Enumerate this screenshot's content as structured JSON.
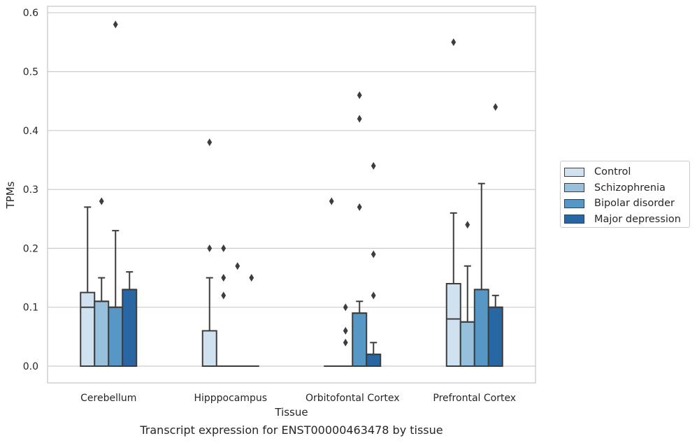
{
  "chart_data": {
    "type": "box",
    "caption": "Transcript expression for ENST00000463478 by tissue",
    "xlabel": "Tissue",
    "ylabel": "TPMs",
    "ylim": [
      -0.03,
      0.61
    ],
    "yticks": [
      0.0,
      0.1,
      0.2,
      0.3,
      0.4,
      0.5,
      0.6
    ],
    "ytick_labels": [
      "0.0",
      "0.1",
      "0.2",
      "0.3",
      "0.4",
      "0.5",
      "0.6"
    ],
    "grid": "horizontal",
    "legend_position": "right",
    "categories": [
      "Cerebellum",
      "Hipppocampus",
      "Orbitofontal Cortex",
      "Prefrontal Cortex"
    ],
    "series": [
      {
        "name": "Control",
        "color": "#d0e1f0",
        "boxes": [
          {
            "q1": 0.0,
            "median": 0.1,
            "q3": 0.125,
            "whislo": 0.0,
            "whishi": 0.27,
            "fliers": []
          },
          {
            "q1": 0.0,
            "median": 0.0,
            "q3": 0.06,
            "whislo": 0.0,
            "whishi": 0.15,
            "fliers": [
              0.38,
              0.2
            ]
          },
          {
            "q1": 0.0,
            "median": 0.0,
            "q3": 0.0,
            "whislo": 0.0,
            "whishi": 0.0,
            "fliers": [
              0.28
            ]
          },
          {
            "q1": 0.0,
            "median": 0.08,
            "q3": 0.14,
            "whislo": 0.0,
            "whishi": 0.26,
            "fliers": [
              0.55
            ]
          }
        ]
      },
      {
        "name": "Schizophrenia",
        "color": "#96c0dc",
        "boxes": [
          {
            "q1": 0.0,
            "median": 0.11,
            "q3": 0.11,
            "whislo": 0.0,
            "whishi": 0.15,
            "fliers": [
              0.28
            ]
          },
          {
            "q1": 0.0,
            "median": 0.0,
            "q3": 0.0,
            "whislo": 0.0,
            "whishi": 0.0,
            "fliers": [
              0.2,
              0.15,
              0.12
            ]
          },
          {
            "q1": 0.0,
            "median": 0.0,
            "q3": 0.0,
            "whislo": 0.0,
            "whishi": 0.0,
            "fliers": [
              0.1,
              0.06,
              0.04
            ]
          },
          {
            "q1": 0.0,
            "median": 0.075,
            "q3": 0.075,
            "whislo": 0.0,
            "whishi": 0.17,
            "fliers": [
              0.24
            ]
          }
        ]
      },
      {
        "name": "Bipolar disorder",
        "color": "#5797c5",
        "boxes": [
          {
            "q1": 0.0,
            "median": 0.1,
            "q3": 0.1,
            "whislo": 0.0,
            "whishi": 0.23,
            "fliers": [
              0.58
            ]
          },
          {
            "q1": 0.0,
            "median": 0.0,
            "q3": 0.0,
            "whislo": 0.0,
            "whishi": 0.0,
            "fliers": [
              0.17
            ]
          },
          {
            "q1": 0.0,
            "median": 0.09,
            "q3": 0.09,
            "whislo": 0.0,
            "whishi": 0.11,
            "fliers": [
              0.46,
              0.42,
              0.27
            ]
          },
          {
            "q1": 0.0,
            "median": 0.13,
            "q3": 0.13,
            "whislo": 0.0,
            "whishi": 0.31,
            "fliers": []
          }
        ]
      },
      {
        "name": "Major depression",
        "color": "#2866a4",
        "boxes": [
          {
            "q1": 0.0,
            "median": 0.13,
            "q3": 0.13,
            "whislo": 0.0,
            "whishi": 0.16,
            "fliers": []
          },
          {
            "q1": 0.0,
            "median": 0.0,
            "q3": 0.0,
            "whislo": 0.0,
            "whishi": 0.0,
            "fliers": [
              0.15
            ]
          },
          {
            "q1": 0.0,
            "median": 0.02,
            "q3": 0.02,
            "whislo": 0.0,
            "whishi": 0.04,
            "fliers": [
              0.34,
              0.19,
              0.12
            ]
          },
          {
            "q1": 0.0,
            "median": 0.1,
            "q3": 0.1,
            "whislo": 0.0,
            "whishi": 0.12,
            "fliers": [
              0.44
            ]
          }
        ]
      }
    ]
  }
}
